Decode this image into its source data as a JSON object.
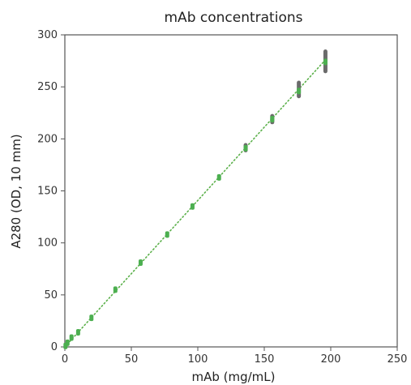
{
  "chart_data": {
    "type": "scatter",
    "title": "mAb concentrations",
    "xlabel": "mAb (mg/mL)",
    "ylabel": "A280 (OD, 10 mm)",
    "xlim": [
      0,
      250
    ],
    "ylim": [
      0,
      300
    ],
    "xticks": [
      "0",
      "50",
      "100",
      "150",
      "200",
      "250"
    ],
    "yticks": [
      "0",
      "50",
      "100",
      "150",
      "200",
      "250",
      "300"
    ],
    "grid": false,
    "legend": "none",
    "colors": {
      "points": "#4caf50",
      "points_outlier": "#6b6b6b",
      "fit_line": "#5bb04a",
      "frame": "#555555"
    },
    "series": [
      {
        "values": [
          {
            "x": 0.5,
            "y": 1
          },
          {
            "x": 2,
            "y": 4
          },
          {
            "x": 5,
            "y": 9
          },
          {
            "x": 10,
            "y": 14
          },
          {
            "x": 20,
            "y": 28
          },
          {
            "x": 38,
            "y": 55
          },
          {
            "x": 57,
            "y": 81
          },
          {
            "x": 77,
            "y": 108
          },
          {
            "x": 96,
            "y": 135
          },
          {
            "x": 116,
            "y": 163
          },
          {
            "x": 136,
            "y": 191
          },
          {
            "x": 156,
            "y": 219
          },
          {
            "x": 176,
            "y": 246
          },
          {
            "x": 196,
            "y": 274
          }
        ],
        "ranges": [
          {
            "x": 136,
            "ymin": 189,
            "ymax": 194
          },
          {
            "x": 156,
            "ymin": 216,
            "ymax": 222
          },
          {
            "x": 176,
            "ymin": 241,
            "ymax": 254
          },
          {
            "x": 196,
            "ymin": 265,
            "ymax": 284
          }
        ]
      }
    ],
    "fit_line": {
      "x": [
        0,
        196
      ],
      "y": [
        0,
        276
      ],
      "style": "dotted"
    }
  }
}
